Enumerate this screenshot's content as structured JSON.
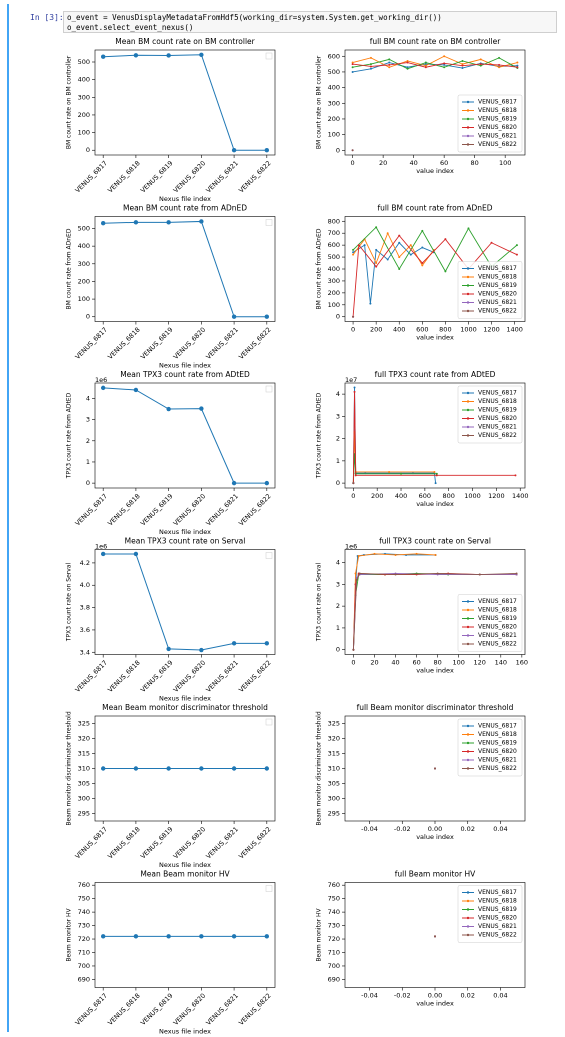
{
  "cell": {
    "prompt": "In [3]:",
    "code": [
      "o_event = VenusDisplayMetadataFromHdf5(working_dir=system.System.get_working_dir())",
      "o_event.select_event_nexus()"
    ]
  },
  "chart_data": [
    {
      "type": "line",
      "title": "Mean BM count rate on BM controller",
      "xlabel": "Nexus file index",
      "ylabel": "BM count rate on BM controller",
      "categories": [
        "VENUS_6817",
        "VENUS_6818",
        "VENUS_6819",
        "VENUS_6820",
        "VENUS_6821",
        "VENUS_6822"
      ],
      "values": [
        530,
        538,
        537,
        541,
        0,
        0
      ],
      "color": "#1f77b4",
      "ylim": [
        -27,
        568
      ],
      "yticks": [
        0,
        100,
        200,
        300,
        400,
        500
      ]
    },
    {
      "type": "line",
      "title": "full BM count rate on BM controller",
      "xlabel": "value index",
      "ylabel": "BM count rate on BM controller",
      "xlim": [
        -5,
        113
      ],
      "xticks": [
        0,
        20,
        40,
        60,
        80,
        100
      ],
      "ylim": [
        -30,
        640
      ],
      "yticks": [
        0,
        100,
        200,
        300,
        400,
        500,
        600
      ],
      "legend": "lower right",
      "series": [
        {
          "name": "VENUS_6817",
          "color": "#1f77b4",
          "x": [
            0,
            12,
            24,
            36,
            48,
            60,
            72,
            84,
            96,
            108
          ],
          "values": [
            500,
            520,
            560,
            530,
            550,
            545,
            525,
            555,
            535,
            540
          ]
        },
        {
          "name": "VENUS_6818",
          "color": "#ff7f0e",
          "x": [
            0,
            12,
            24,
            36,
            48,
            60,
            72,
            84,
            96,
            108
          ],
          "values": [
            560,
            590,
            530,
            570,
            540,
            600,
            550,
            580,
            530,
            560
          ]
        },
        {
          "name": "VENUS_6819",
          "color": "#2ca02c",
          "x": [
            0,
            12,
            24,
            36,
            48,
            60,
            72,
            84,
            96,
            108
          ],
          "values": [
            530,
            550,
            580,
            520,
            560,
            530,
            570,
            540,
            590,
            525
          ]
        },
        {
          "name": "VENUS_6820",
          "color": "#d62728",
          "x": [
            0,
            12,
            24,
            36,
            48,
            60,
            72,
            84,
            96,
            108
          ],
          "values": [
            550,
            535,
            545,
            560,
            530,
            555,
            540,
            550,
            545,
            530
          ]
        },
        {
          "name": "VENUS_6821",
          "color": "#9467bd",
          "x": [
            0
          ],
          "values": [
            0
          ]
        },
        {
          "name": "VENUS_6822",
          "color": "#8c564b",
          "x": [
            0
          ],
          "values": [
            0
          ]
        }
      ]
    },
    {
      "type": "line",
      "title": "Mean BM count rate from ADnED",
      "xlabel": "Nexus file index",
      "ylabel": "BM count rate from ADnED",
      "categories": [
        "VENUS_6817",
        "VENUS_6818",
        "VENUS_6819",
        "VENUS_6820",
        "VENUS_6821",
        "VENUS_6822"
      ],
      "values": [
        530,
        535,
        535,
        540,
        0,
        0
      ],
      "color": "#1f77b4",
      "ylim": [
        -27,
        568
      ],
      "yticks": [
        0,
        100,
        200,
        300,
        400,
        500
      ]
    },
    {
      "type": "line",
      "title": "full BM count rate from ADnED",
      "xlabel": "value index",
      "ylabel": "BM count rate from ADnED",
      "xlim": [
        -70,
        1490
      ],
      "xticks": [
        0,
        200,
        400,
        600,
        800,
        1000,
        1200,
        1400
      ],
      "ylim": [
        -40,
        840
      ],
      "yticks": [
        0,
        100,
        200,
        300,
        400,
        500,
        600,
        700,
        800
      ],
      "legend": "lower right",
      "series": [
        {
          "name": "VENUS_6817",
          "color": "#1f77b4",
          "x": [
            0,
            100,
            150,
            200,
            300,
            400,
            500,
            600,
            700
          ],
          "values": [
            540,
            600,
            110,
            560,
            480,
            620,
            520,
            580,
            540
          ]
        },
        {
          "name": "VENUS_6818",
          "color": "#ff7f0e",
          "x": [
            0,
            100,
            200,
            300,
            400,
            500,
            600,
            700
          ],
          "values": [
            520,
            650,
            450,
            700,
            500,
            600,
            430,
            560
          ]
        },
        {
          "name": "VENUS_6819",
          "color": "#2ca02c",
          "x": [
            0,
            200,
            400,
            600,
            800,
            1000,
            1200,
            1420
          ],
          "values": [
            560,
            750,
            400,
            720,
            380,
            740,
            420,
            600
          ]
        },
        {
          "name": "VENUS_6820",
          "color": "#d62728",
          "x": [
            0,
            50,
            200,
            400,
            600,
            800,
            1000,
            1200,
            1420
          ],
          "values": [
            0,
            600,
            420,
            680,
            450,
            650,
            400,
            620,
            520
          ]
        },
        {
          "name": "VENUS_6821",
          "color": "#9467bd",
          "x": [
            0
          ],
          "values": [
            0
          ]
        },
        {
          "name": "VENUS_6822",
          "color": "#8c564b",
          "x": [
            0
          ],
          "values": [
            0
          ]
        }
      ]
    },
    {
      "type": "line",
      "title": "Mean TPX3 count rate from ADtED",
      "xlabel": "Nexus file index",
      "ylabel": "TPX3 count rate from ADtED",
      "y_offset": "1e6",
      "categories": [
        "VENUS_6817",
        "VENUS_6818",
        "VENUS_6819",
        "VENUS_6820",
        "VENUS_6821",
        "VENUS_6822"
      ],
      "values": [
        4.5,
        4.4,
        3.5,
        3.52,
        0,
        0
      ],
      "color": "#1f77b4",
      "ylim": [
        -0.23,
        4.73
      ],
      "yticks": [
        0,
        1,
        2,
        3,
        4
      ]
    },
    {
      "type": "line",
      "title": "full TPX3 count rate from ADtED",
      "xlabel": "value index",
      "ylabel": "TPX3 count rate from ADtED",
      "y_offset": "1e7",
      "xlim": [
        -70,
        1440
      ],
      "xticks": [
        0,
        200,
        400,
        600,
        800,
        1000,
        1200,
        1400
      ],
      "ylim": [
        -0.22,
        4.5
      ],
      "yticks": [
        0,
        1,
        2,
        3,
        4
      ],
      "legend": "upper right",
      "series": [
        {
          "name": "VENUS_6817",
          "color": "#1f77b4",
          "x": [
            0,
            10,
            20,
            100,
            300,
            500,
            680,
            690
          ],
          "values": [
            0,
            4.3,
            0.45,
            0.45,
            0.45,
            0.45,
            0.45,
            0
          ]
        },
        {
          "name": "VENUS_6818",
          "color": "#ff7f0e",
          "x": [
            0,
            10,
            20,
            300,
            680
          ],
          "values": [
            0,
            2.3,
            0.5,
            0.5,
            0.5
          ]
        },
        {
          "name": "VENUS_6819",
          "color": "#2ca02c",
          "x": [
            0,
            10,
            20,
            400,
            700
          ],
          "values": [
            0,
            1.3,
            0.42,
            0.42,
            0.42
          ]
        },
        {
          "name": "VENUS_6820",
          "color": "#d62728",
          "x": [
            0,
            10,
            20,
            700,
            1360
          ],
          "values": [
            0,
            4.1,
            0.35,
            0.35,
            0.35
          ]
        },
        {
          "name": "VENUS_6821",
          "color": "#9467bd",
          "x": [
            0
          ],
          "values": [
            0
          ]
        },
        {
          "name": "VENUS_6822",
          "color": "#8c564b",
          "x": [
            0
          ],
          "values": [
            0
          ]
        }
      ]
    },
    {
      "type": "line",
      "title": "Mean TPX3 count rate on Serval",
      "xlabel": "Nexus file index",
      "ylabel": "TPX3 count rate on Serval",
      "y_offset": "1e6",
      "categories": [
        "VENUS_6817",
        "VENUS_6818",
        "VENUS_6819",
        "VENUS_6820",
        "VENUS_6821",
        "VENUS_6822"
      ],
      "values": [
        4.28,
        4.28,
        3.43,
        3.42,
        3.48,
        3.48
      ],
      "color": "#1f77b4",
      "ylim": [
        3.38,
        4.32
      ],
      "yticks": [
        3.4,
        3.6,
        3.8,
        {
          "value": 4,
          "label": "4.0"
        },
        4.2
      ]
    },
    {
      "type": "line",
      "title": "full TPX3 count rate on Serval",
      "xlabel": "value index",
      "ylabel": "TPX3 count rate on Serval",
      "y_offset": "1e6",
      "xlim": [
        -8,
        163
      ],
      "xticks": [
        0,
        20,
        40,
        60,
        80,
        100,
        120,
        140,
        160
      ],
      "ylim": [
        -0.22,
        4.6
      ],
      "yticks": [
        0,
        1,
        2,
        3,
        4
      ],
      "legend": "lower right",
      "series": [
        {
          "name": "VENUS_6817",
          "color": "#1f77b4",
          "x": [
            0,
            2,
            4,
            10,
            30,
            50,
            78
          ],
          "values": [
            0,
            3.0,
            4.3,
            4.35,
            4.4,
            4.35,
            4.35
          ]
        },
        {
          "name": "VENUS_6818",
          "color": "#ff7f0e",
          "x": [
            0,
            2,
            5,
            20,
            40,
            60,
            78
          ],
          "values": [
            0,
            3.5,
            4.3,
            4.4,
            4.35,
            4.4,
            4.35
          ]
        },
        {
          "name": "VENUS_6819",
          "color": "#2ca02c",
          "x": [
            0,
            2,
            5,
            30,
            60,
            90,
            120,
            155
          ],
          "values": [
            0,
            2.5,
            3.45,
            3.45,
            3.5,
            3.45,
            3.45,
            3.45
          ]
        },
        {
          "name": "VENUS_6820",
          "color": "#d62728",
          "x": [
            0,
            2,
            5,
            30,
            60,
            90,
            120,
            155
          ],
          "values": [
            0,
            3.0,
            3.5,
            3.45,
            3.45,
            3.5,
            3.45,
            3.45
          ]
        },
        {
          "name": "VENUS_6821",
          "color": "#9467bd",
          "x": [
            0,
            3,
            6,
            40,
            80,
            120,
            155
          ],
          "values": [
            0,
            3.3,
            3.45,
            3.5,
            3.45,
            3.45,
            3.45
          ]
        },
        {
          "name": "VENUS_6822",
          "color": "#8c564b",
          "x": [
            0,
            3,
            6,
            40,
            80,
            120,
            155
          ],
          "values": [
            0,
            3.2,
            3.5,
            3.45,
            3.5,
            3.45,
            3.5
          ]
        }
      ]
    },
    {
      "type": "line",
      "title": "Mean Beam monitor discriminator threshold",
      "xlabel": "Nexus file index",
      "ylabel": "Beam monitor discriminator threshold",
      "categories": [
        "VENUS_6817",
        "VENUS_6818",
        "VENUS_6819",
        "VENUS_6820",
        "VENUS_6821",
        "VENUS_6822"
      ],
      "values": [
        310,
        310,
        310,
        310,
        310,
        310
      ],
      "color": "#1f77b4",
      "ylim": [
        292.5,
        327.5
      ],
      "yticks": [
        295,
        300,
        305,
        310,
        315,
        320,
        325
      ]
    },
    {
      "type": "line",
      "title": "full Beam monitor discriminator threshold",
      "xlabel": "value index",
      "ylabel": "Beam monitor discriminator threshold",
      "xlim": [
        -0.055,
        0.055
      ],
      "xticks": [
        -0.04,
        -0.02,
        {
          "value": 0,
          "label": "0.00"
        },
        0.02,
        0.04
      ],
      "ylim": [
        292.5,
        327.5
      ],
      "yticks": [
        295,
        300,
        305,
        310,
        315,
        320,
        325
      ],
      "legend": "upper right",
      "series": [
        {
          "name": "VENUS_6817",
          "color": "#1f77b4",
          "x": [
            0
          ],
          "values": [
            310
          ]
        },
        {
          "name": "VENUS_6818",
          "color": "#ff7f0e",
          "x": [
            0
          ],
          "values": [
            310
          ]
        },
        {
          "name": "VENUS_6819",
          "color": "#2ca02c",
          "x": [
            0
          ],
          "values": [
            310
          ]
        },
        {
          "name": "VENUS_6820",
          "color": "#d62728",
          "x": [
            0
          ],
          "values": [
            310
          ]
        },
        {
          "name": "VENUS_6821",
          "color": "#9467bd",
          "x": [
            0
          ],
          "values": [
            310
          ]
        },
        {
          "name": "VENUS_6822",
          "color": "#8c564b",
          "x": [
            0
          ],
          "values": [
            310
          ]
        }
      ]
    },
    {
      "type": "line",
      "title": "Mean Beam monitor HV",
      "xlabel": "Nexus file index",
      "ylabel": "Beam monitor HV",
      "categories": [
        "VENUS_6817",
        "VENUS_6818",
        "VENUS_6819",
        "VENUS_6820",
        "VENUS_6821",
        "VENUS_6822"
      ],
      "values": [
        722,
        722,
        722,
        722,
        722,
        722
      ],
      "color": "#1f77b4",
      "ylim": [
        684,
        762
      ],
      "yticks": [
        690,
        700,
        710,
        720,
        730,
        740,
        750,
        760
      ]
    },
    {
      "type": "line",
      "title": "full Beam monitor HV",
      "xlabel": "value index",
      "ylabel": "Beam monitor HV",
      "xlim": [
        -0.055,
        0.055
      ],
      "xticks": [
        -0.04,
        -0.02,
        {
          "value": 0,
          "label": "0.00"
        },
        0.02,
        0.04
      ],
      "ylim": [
        684,
        762
      ],
      "yticks": [
        690,
        700,
        710,
        720,
        730,
        740,
        750,
        760
      ],
      "legend": "upper right",
      "series": [
        {
          "name": "VENUS_6817",
          "color": "#1f77b4",
          "x": [
            0
          ],
          "values": [
            722
          ]
        },
        {
          "name": "VENUS_6818",
          "color": "#ff7f0e",
          "x": [
            0
          ],
          "values": [
            722
          ]
        },
        {
          "name": "VENUS_6819",
          "color": "#2ca02c",
          "x": [
            0
          ],
          "values": [
            722
          ]
        },
        {
          "name": "VENUS_6820",
          "color": "#d62728",
          "x": [
            0
          ],
          "values": [
            722
          ]
        },
        {
          "name": "VENUS_6821",
          "color": "#9467bd",
          "x": [
            0
          ],
          "values": [
            722
          ]
        },
        {
          "name": "VENUS_6822",
          "color": "#8c564b",
          "x": [
            0
          ],
          "values": [
            722
          ]
        }
      ]
    }
  ]
}
